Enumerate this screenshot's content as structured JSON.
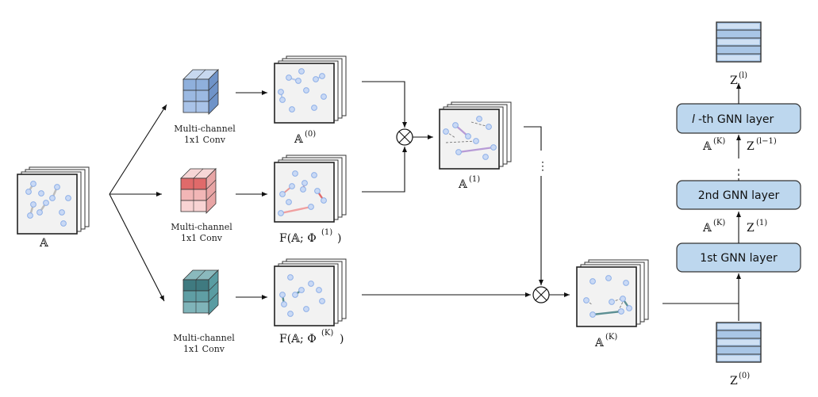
{
  "inputs": {
    "adjacency_label": "𝔸",
    "channel_label_line1": "Multi-channel",
    "channel_label_line2": "1x1 Conv"
  },
  "stages": {
    "a0_base": "𝔸",
    "a0_sup": "(0)",
    "f1_base": "F(𝔸; Φ",
    "f1_sup": "(1)",
    "f1_close": ")",
    "fk_base": "F(𝔸; Φ",
    "fk_sup": "(K)",
    "fk_close": ")",
    "a1_base": "𝔸",
    "a1_sup": "(1)",
    "ak_base": "𝔸",
    "ak_sup": "(K)",
    "dots": "⋮",
    "product_symbol": "⊗"
  },
  "gnn": {
    "layer1": "1st GNN layer",
    "layer2": "2nd GNN layer",
    "layerl_prefix": "l",
    "layerl_suffix": "-th GNN layer",
    "z0_base": "Z",
    "z0_sup": "(0)",
    "zl_base": "Z",
    "zl_sup": "(l)",
    "edge1_a": "𝔸",
    "edge1_a_sup": "(K)",
    "edge1_z": "Z",
    "edge1_z_sup": "(1)",
    "edge2_a": "𝔸",
    "edge2_a_sup": "(K)",
    "edge2_z": "Z",
    "edge2_z_sup": "(l−1)"
  },
  "colors": {
    "blue_cube": "#8fb0dc",
    "red_cube": "#e06a6a",
    "teal_cube": "#3f7a80",
    "gnn_fill": "#bdd7ee",
    "node": "#a9c3ee",
    "matrix_bg": "#f2f2f2"
  }
}
